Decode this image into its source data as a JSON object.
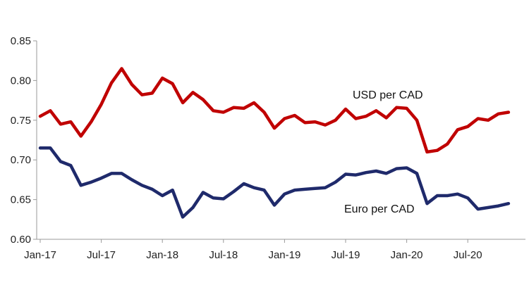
{
  "chart_data": {
    "type": "line",
    "title": "",
    "xlabel": "",
    "ylabel": "",
    "ylim": [
      0.6,
      0.85
    ],
    "yticks": [
      "0.60",
      "0.65",
      "0.70",
      "0.75",
      "0.80",
      "0.85"
    ],
    "x_tick_labels": [
      "Jan-17",
      "Jul-17",
      "Jan-18",
      "Jul-18",
      "Jan-19",
      "Jul-19",
      "Jan-20",
      "Jul-20"
    ],
    "grid": false,
    "legend": "inline labels",
    "x": [
      "2017-01",
      "2017-02",
      "2017-03",
      "2017-04",
      "2017-05",
      "2017-06",
      "2017-07",
      "2017-08",
      "2017-09",
      "2017-10",
      "2017-11",
      "2017-12",
      "2018-01",
      "2018-02",
      "2018-03",
      "2018-04",
      "2018-05",
      "2018-06",
      "2018-07",
      "2018-08",
      "2018-09",
      "2018-10",
      "2018-11",
      "2018-12",
      "2019-01",
      "2019-02",
      "2019-03",
      "2019-04",
      "2019-05",
      "2019-06",
      "2019-07",
      "2019-08",
      "2019-09",
      "2019-10",
      "2019-11",
      "2019-12",
      "2020-01",
      "2020-02",
      "2020-03",
      "2020-04",
      "2020-05",
      "2020-06",
      "2020-07",
      "2020-08",
      "2020-09",
      "2020-10",
      "2020-11"
    ],
    "series": [
      {
        "name": "USD per CAD",
        "color": "#c00000",
        "values": [
          0.755,
          0.762,
          0.745,
          0.748,
          0.73,
          0.748,
          0.77,
          0.797,
          0.815,
          0.795,
          0.782,
          0.784,
          0.803,
          0.796,
          0.772,
          0.785,
          0.776,
          0.762,
          0.76,
          0.766,
          0.765,
          0.772,
          0.76,
          0.74,
          0.752,
          0.756,
          0.747,
          0.748,
          0.744,
          0.75,
          0.764,
          0.752,
          0.755,
          0.762,
          0.753,
          0.766,
          0.765,
          0.75,
          0.71,
          0.712,
          0.72,
          0.738,
          0.742,
          0.752,
          0.75,
          0.758,
          0.76
        ]
      },
      {
        "name": "Euro per CAD",
        "color": "#1f2a6b",
        "values": [
          0.715,
          0.715,
          0.698,
          0.693,
          0.668,
          0.672,
          0.677,
          0.683,
          0.683,
          0.675,
          0.668,
          0.663,
          0.655,
          0.662,
          0.628,
          0.64,
          0.659,
          0.652,
          0.651,
          0.66,
          0.67,
          0.665,
          0.662,
          0.643,
          0.657,
          0.662,
          0.663,
          0.664,
          0.665,
          0.672,
          0.682,
          0.681,
          0.684,
          0.686,
          0.683,
          0.689,
          0.69,
          0.683,
          0.645,
          0.655,
          0.655,
          0.657,
          0.652,
          0.638,
          0.64,
          0.642,
          0.645
        ]
      }
    ]
  }
}
